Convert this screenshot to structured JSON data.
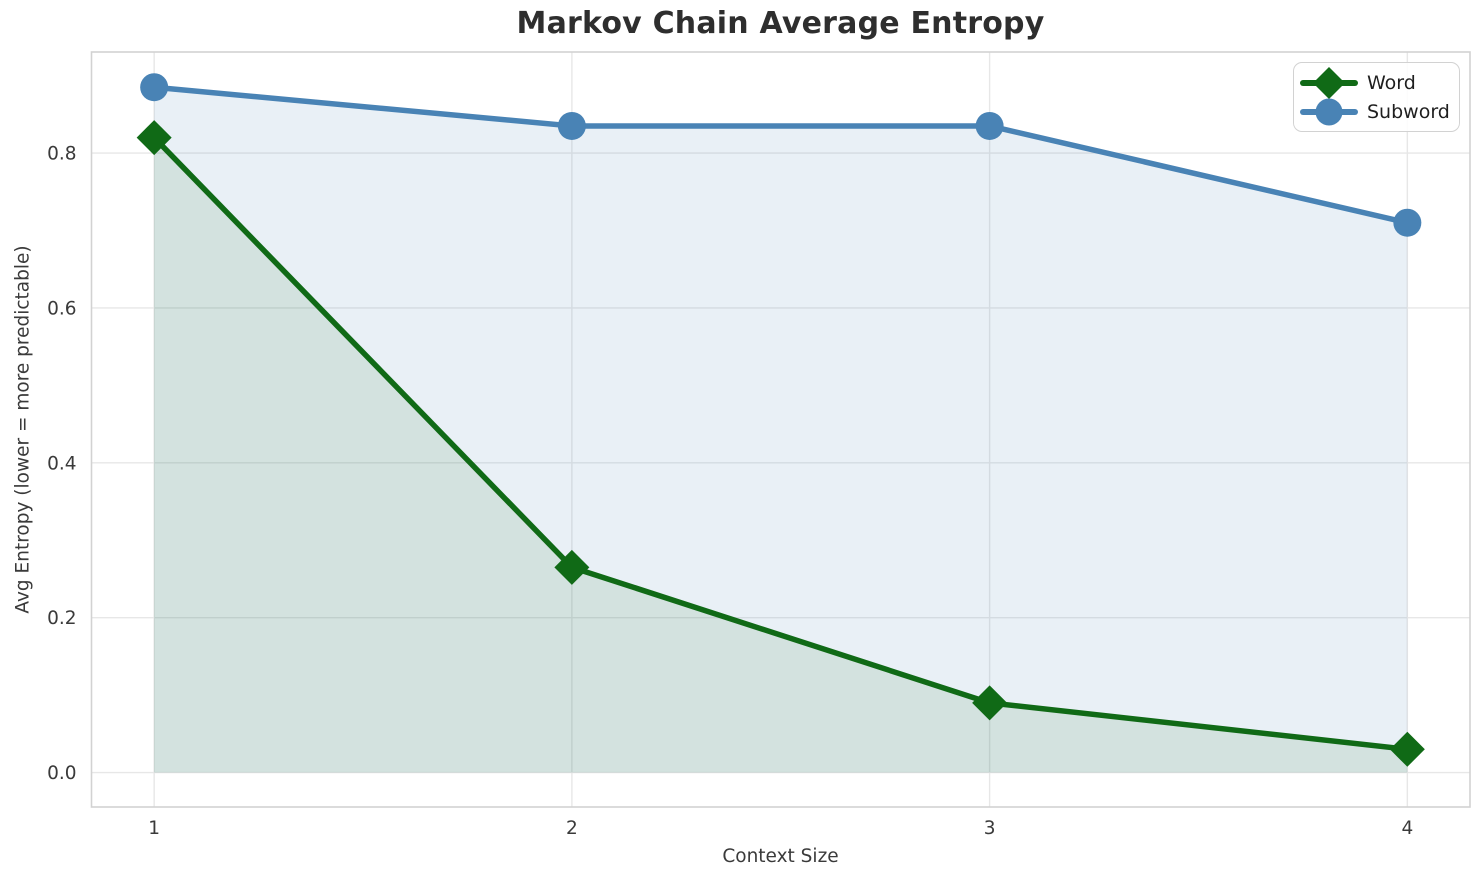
{
  "chart_data": {
    "type": "line",
    "title": "Markov Chain Average Entropy",
    "xlabel": "Context Size",
    "ylabel": "Avg Entropy (lower = more predictable)",
    "x": [
      1,
      2,
      3,
      4
    ],
    "xtick_labels": [
      "1",
      "2",
      "3",
      "4"
    ],
    "yticks": [
      0.0,
      0.2,
      0.4,
      0.6,
      0.8
    ],
    "ytick_labels": [
      "0.0",
      "0.2",
      "0.4",
      "0.6",
      "0.8"
    ],
    "xlim": [
      0.85,
      4.15
    ],
    "ylim": [
      -0.0445,
      0.9305
    ],
    "grid": true,
    "legend_position": "upper right",
    "series": [
      {
        "name": "Word",
        "values": [
          0.82,
          0.265,
          0.09,
          0.03
        ],
        "color": "#106a16",
        "marker": "diamond",
        "area_fill": true,
        "fill_alpha": 0.1
      },
      {
        "name": "Subword",
        "values": [
          0.885,
          0.835,
          0.835,
          0.71
        ],
        "color": "#4983b5",
        "marker": "circle",
        "area_fill": true,
        "fill_alpha": 0.12
      }
    ],
    "colors": {
      "grid": "#e7e7e7",
      "plot_border": "#d2d2d2",
      "title_text": "#2e2e2e",
      "tick_text": "#3a3a3a"
    }
  }
}
